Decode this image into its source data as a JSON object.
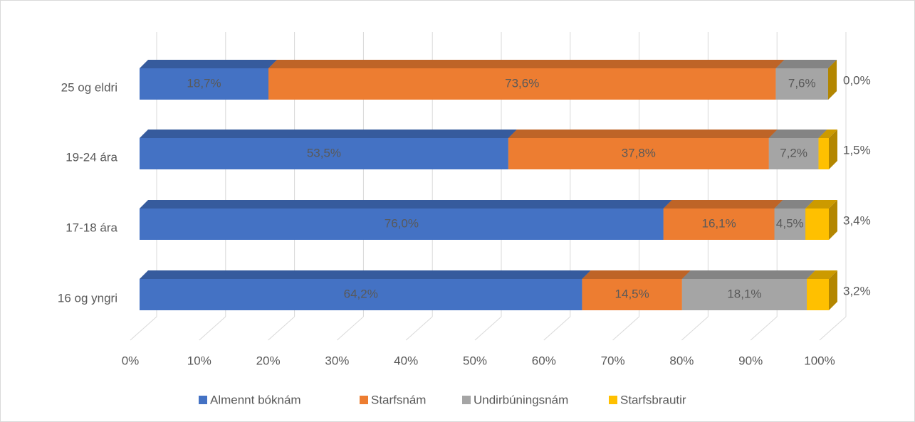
{
  "chart_data": {
    "type": "stacked-bar-3d",
    "categories": [
      "25 og eldri",
      "19-24 ára",
      "17-18 ára",
      "16 og yngri"
    ],
    "series": [
      {
        "name": "Almennt bóknám",
        "color": "#4472c4",
        "values": [
          18.7,
          53.5,
          76.0,
          64.2
        ],
        "value_labels": [
          "18,7%",
          "53,5%",
          "76,0%",
          "64,2%"
        ]
      },
      {
        "name": "Starfsnám",
        "color": "#ed7d31",
        "values": [
          73.6,
          37.8,
          16.1,
          14.5
        ],
        "value_labels": [
          "73,6%",
          "37,8%",
          "16,1%",
          "14,5%"
        ]
      },
      {
        "name": "Undirbúningsnám",
        "color": "#a5a5a5",
        "values": [
          7.6,
          7.2,
          4.5,
          18.1
        ],
        "value_labels": [
          "7,6%",
          "7,2%",
          "4,5%",
          "18,1%"
        ]
      },
      {
        "name": "Starfsbrautir",
        "color": "#ffc000",
        "values": [
          0.0,
          1.5,
          3.4,
          3.2
        ],
        "value_labels": [
          "0,0%",
          "1,5%",
          "3,4%",
          "3,2%"
        ]
      }
    ],
    "xlim": [
      0,
      100
    ],
    "xticks": [
      {
        "value": 0,
        "label": "0%"
      },
      {
        "value": 10,
        "label": "10%"
      },
      {
        "value": 20,
        "label": "20%"
      },
      {
        "value": 30,
        "label": "30%"
      },
      {
        "value": 40,
        "label": "40%"
      },
      {
        "value": 50,
        "label": "50%"
      },
      {
        "value": 60,
        "label": "60%"
      },
      {
        "value": 70,
        "label": "70%"
      },
      {
        "value": 80,
        "label": "80%"
      },
      {
        "value": 90,
        "label": "90%"
      },
      {
        "value": 100,
        "label": "100%"
      }
    ],
    "grid": true,
    "legend": "bottom"
  }
}
